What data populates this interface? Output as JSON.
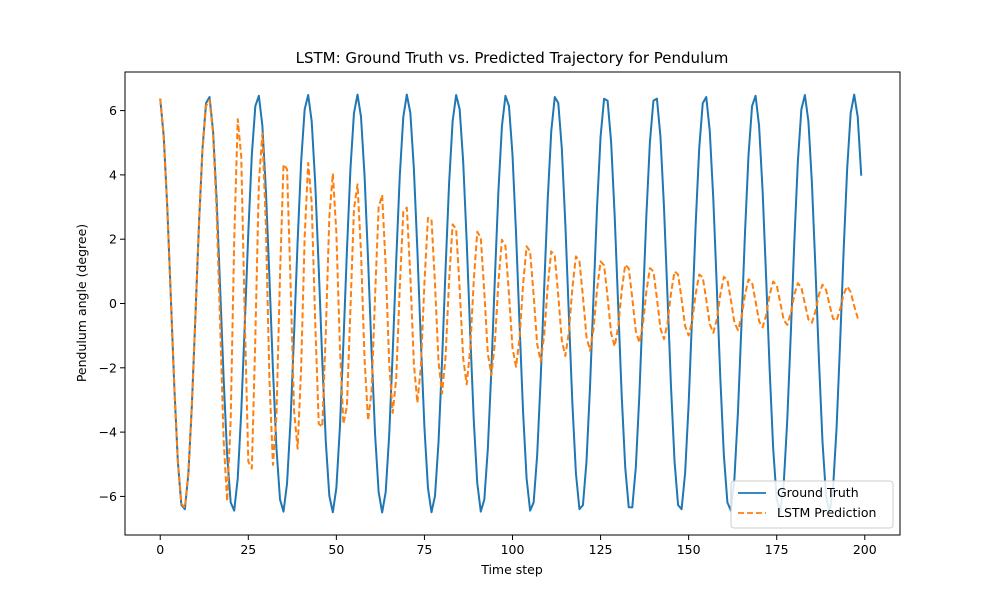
{
  "chart_data": {
    "type": "line",
    "title": "LSTM: Ground Truth vs. Predicted Trajectory for Pendulum",
    "xlabel": "Time step",
    "ylabel": "Pendulum angle (degree)",
    "xlim": [
      -10,
      210
    ],
    "ylim": [
      -7.2,
      7.2
    ],
    "xticks": [
      0,
      25,
      50,
      75,
      100,
      125,
      150,
      175,
      200
    ],
    "yticks": [
      -6,
      -4,
      -2,
      0,
      2,
      4,
      6
    ],
    "grid": false,
    "legend_position": "lower-right",
    "series": [
      {
        "name": "Ground Truth",
        "color": "#1f77b4",
        "style": "solid",
        "model": {
          "amplitude": 6.5,
          "period": 14.1,
          "phase": 0.2,
          "decay": 0,
          "x_start": 0,
          "x_end": 199
        }
      },
      {
        "name": "LSTM Prediction",
        "color": "#ff7f0e",
        "style": "dashed",
        "model": {
          "amplitude": 6.5,
          "period": 14.1,
          "phase": 0.2,
          "x_start": 0,
          "x_end": 199,
          "amplitude_points": [
            [
              0,
              6.5
            ],
            [
              15,
              6.4
            ],
            [
              23,
              5.9
            ],
            [
              35,
              4.8
            ],
            [
              50,
              4.0
            ],
            [
              62,
              3.6
            ],
            [
              75,
              3.0
            ],
            [
              90,
              2.4
            ],
            [
              100,
              2.0
            ],
            [
              125,
              1.4
            ],
            [
              150,
              1.0
            ],
            [
              175,
              0.7
            ],
            [
              199,
              0.5
            ]
          ],
          "period_points": [
            [
              0,
              14.1
            ],
            [
              15,
              14.1
            ],
            [
              20,
              6.5
            ],
            [
              30,
              6.6
            ],
            [
              60,
              6.9
            ],
            [
              100,
              7.0
            ],
            [
              150,
              7.0
            ],
            [
              199,
              6.9
            ]
          ]
        }
      }
    ]
  }
}
